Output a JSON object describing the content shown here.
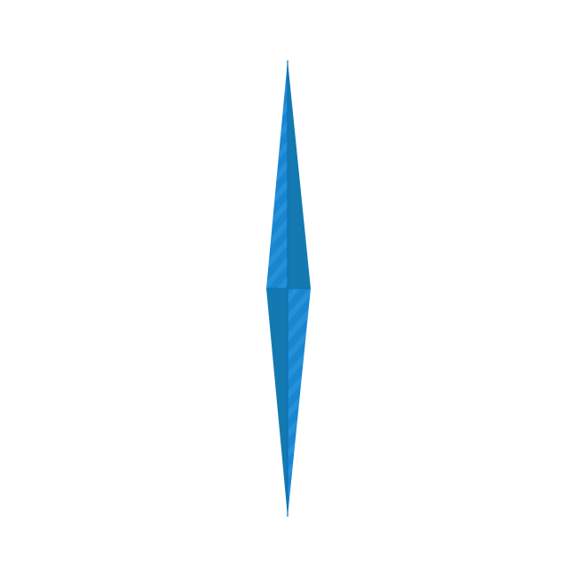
{
  "compass_needle": {
    "icon": "compass-needle-icon",
    "colors": {
      "dark_blue": "#0b6fb8",
      "mid_blue": "#1a86cf",
      "light_blue": "#2a97dc",
      "shade_blue": "#1479b0",
      "stripe": "#3aa6e6"
    }
  }
}
